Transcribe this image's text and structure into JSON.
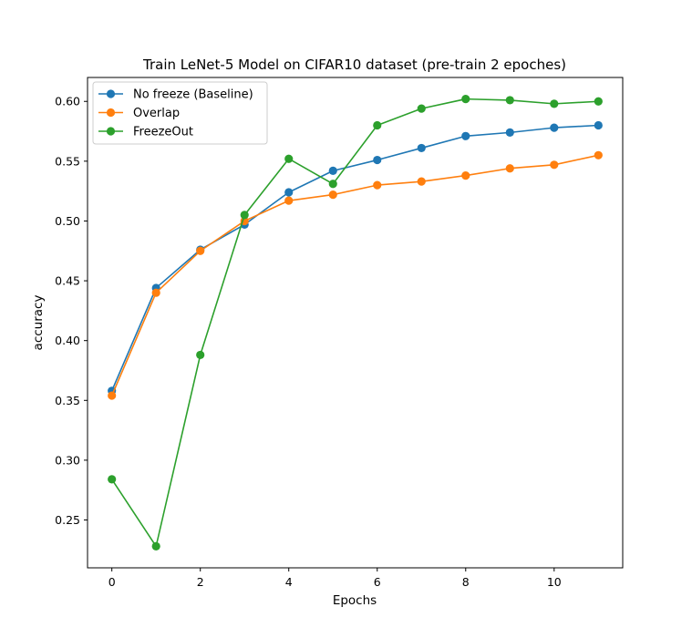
{
  "chart_data": {
    "type": "line",
    "title": "Train LeNet-5 Model on CIFAR10 dataset (pre-train 2 epoches)",
    "xlabel": "Epochs",
    "ylabel": "accuracy",
    "xlim": [
      -0.55,
      11.55
    ],
    "ylim": [
      0.21,
      0.62
    ],
    "xticks": [
      0,
      2,
      4,
      6,
      8,
      10
    ],
    "xtick_labels": [
      "0",
      "2",
      "4",
      "6",
      "8",
      "10"
    ],
    "yticks": [
      0.25,
      0.3,
      0.35,
      0.4,
      0.45,
      0.5,
      0.55,
      0.6
    ],
    "ytick_labels": [
      "0.25",
      "0.30",
      "0.35",
      "0.40",
      "0.45",
      "0.50",
      "0.55",
      "0.60"
    ],
    "grid": false,
    "legend_position": "top-left",
    "x": [
      0,
      1,
      2,
      3,
      4,
      5,
      6,
      7,
      8,
      9,
      10,
      11
    ],
    "series": [
      {
        "name": "No freeze (Baseline)",
        "color": "#1f77b4",
        "values": [
          0.358,
          0.444,
          0.476,
          0.497,
          0.524,
          0.542,
          0.551,
          0.561,
          0.571,
          0.574,
          0.578,
          0.58
        ]
      },
      {
        "name": "Overlap",
        "color": "#ff7f0e",
        "values": [
          0.354,
          0.44,
          0.475,
          0.5,
          0.517,
          0.522,
          0.53,
          0.533,
          0.538,
          0.544,
          0.547,
          0.555
        ]
      },
      {
        "name": "FreezeOut",
        "color": "#2ca02c",
        "values": [
          0.284,
          0.228,
          0.388,
          0.505,
          0.552,
          0.531,
          0.58,
          0.594,
          0.602,
          0.601,
          0.598,
          0.6
        ]
      }
    ]
  }
}
